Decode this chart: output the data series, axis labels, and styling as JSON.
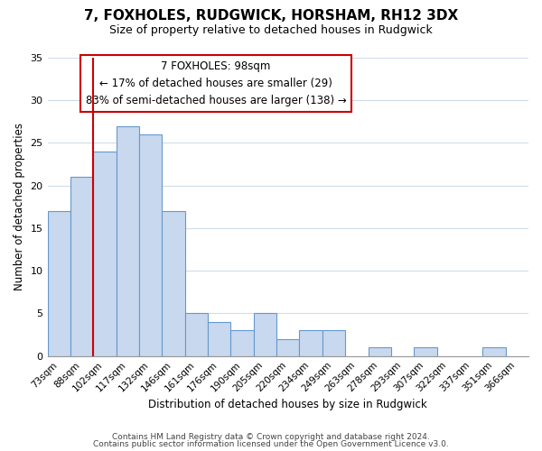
{
  "title": "7, FOXHOLES, RUDGWICK, HORSHAM, RH12 3DX",
  "subtitle": "Size of property relative to detached houses in Rudgwick",
  "xlabel": "Distribution of detached houses by size in Rudgwick",
  "ylabel": "Number of detached properties",
  "bar_labels": [
    "73sqm",
    "88sqm",
    "102sqm",
    "117sqm",
    "132sqm",
    "146sqm",
    "161sqm",
    "176sqm",
    "190sqm",
    "205sqm",
    "220sqm",
    "234sqm",
    "249sqm",
    "263sqm",
    "278sqm",
    "293sqm",
    "307sqm",
    "322sqm",
    "337sqm",
    "351sqm",
    "366sqm"
  ],
  "bar_heights": [
    17,
    21,
    24,
    27,
    26,
    17,
    5,
    4,
    3,
    5,
    2,
    3,
    3,
    0,
    1,
    0,
    1,
    0,
    0,
    1,
    0
  ],
  "bar_color": "#c8d8ee",
  "bar_edge_color": "#6699cc",
  "marker_color": "#cc0000",
  "ylim": [
    0,
    35
  ],
  "yticks": [
    0,
    5,
    10,
    15,
    20,
    25,
    30,
    35
  ],
  "annotation_title": "7 FOXHOLES: 98sqm",
  "annotation_line1": "← 17% of detached houses are smaller (29)",
  "annotation_line2": "83% of semi-detached houses are larger (138) →",
  "annotation_box_color": "#ffffff",
  "annotation_box_edge": "#cc0000",
  "footer1": "Contains HM Land Registry data © Crown copyright and database right 2024.",
  "footer2": "Contains public sector information licensed under the Open Government Licence v3.0.",
  "background_color": "#ffffff",
  "grid_color": "#d0dce8"
}
